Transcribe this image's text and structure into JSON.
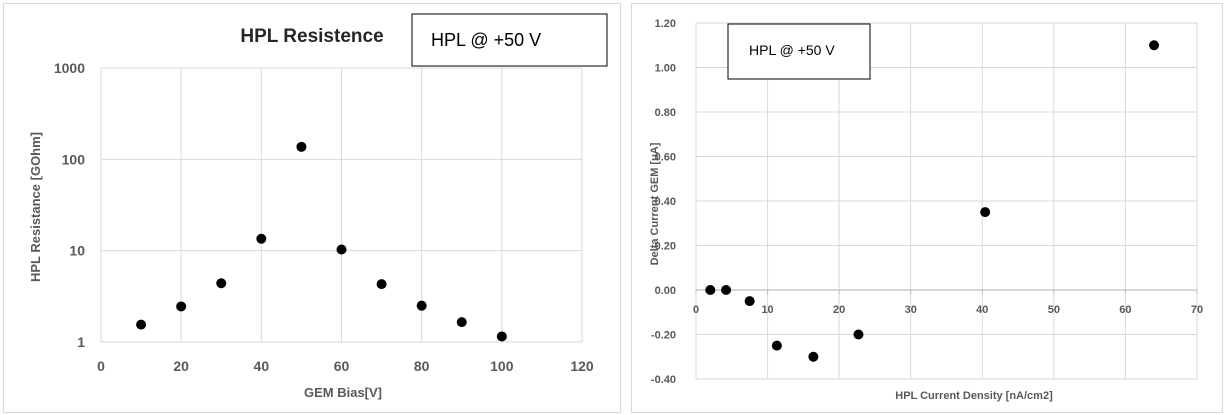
{
  "chart_data": [
    {
      "type": "scatter",
      "title": "HPL Resistence",
      "annotation": "HPL @ +50 V",
      "xlabel": "GEM Bias[V]",
      "ylabel": "HPL Resistance  [GOhm]",
      "yscale": "log",
      "xlim": [
        0,
        120
      ],
      "ylim": [
        1,
        1000
      ],
      "xticks": [
        "0",
        "20",
        "40",
        "60",
        "80",
        "100",
        "120"
      ],
      "yticks": [
        "1",
        "10",
        "100",
        "1000"
      ],
      "grid": "vertical and horizontal",
      "marker_color": "#000000",
      "x": [
        10,
        20,
        30,
        40,
        50,
        60,
        70,
        80,
        90,
        100
      ],
      "y": [
        1.55,
        2.45,
        4.4,
        13.5,
        137,
        10.3,
        4.3,
        2.5,
        1.65,
        1.15
      ]
    },
    {
      "type": "scatter",
      "annotation": "HPL @ +50 V",
      "xlabel": "HPL Current Density [nA/cm2]",
      "ylabel": "Delta Current GEM [uA]",
      "xlim": [
        0,
        70
      ],
      "ylim": [
        -0.4,
        1.2
      ],
      "xticks": [
        "0",
        "10",
        "20",
        "30",
        "40",
        "50",
        "60",
        "70"
      ],
      "yticks": [
        "-0.40",
        "-0.20",
        "0.00",
        "0.20",
        "0.40",
        "0.60",
        "0.80",
        "1.00",
        "1.20"
      ],
      "grid": "vertical and horizontal",
      "marker_color": "#000000",
      "x": [
        2.0,
        4.2,
        7.5,
        11.3,
        16.4,
        22.7,
        40.4,
        64.0
      ],
      "y": [
        0.0,
        0.0,
        -0.05,
        -0.25,
        -0.3,
        -0.2,
        0.35,
        1.1
      ]
    }
  ]
}
